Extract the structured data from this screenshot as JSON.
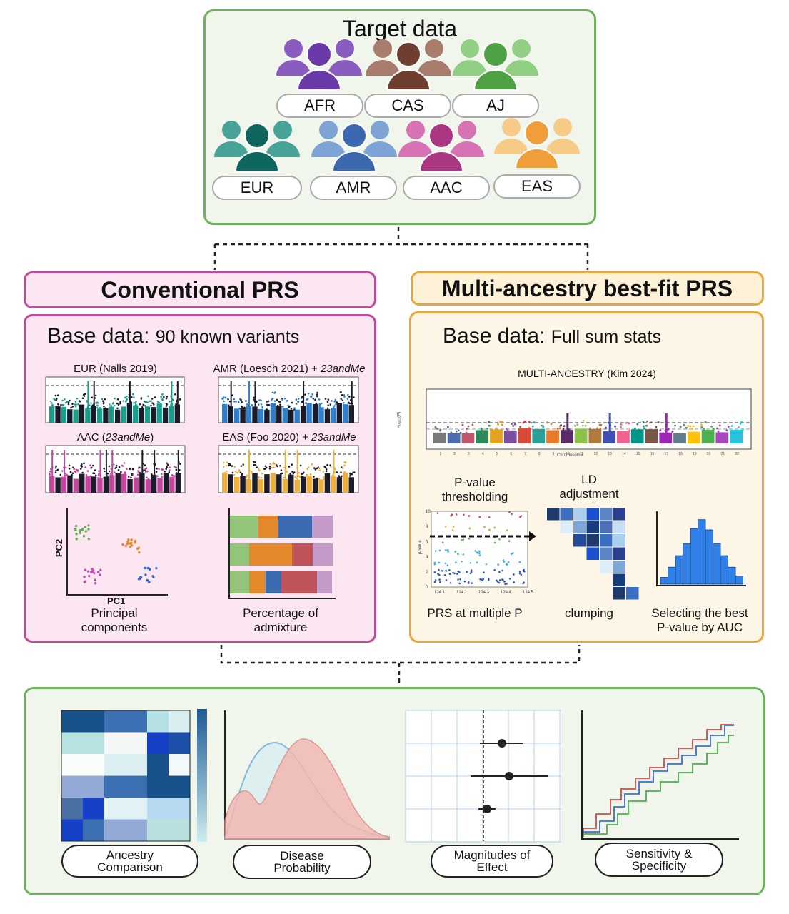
{
  "target": {
    "title": "Target data",
    "groups": [
      {
        "label": "AFR",
        "color": "#8a5cc0",
        "dark": "#6a3ba8"
      },
      {
        "label": "CAS",
        "color": "#a87c6c",
        "dark": "#6e3e2e"
      },
      {
        "label": "AJ",
        "color": "#90cf84",
        "dark": "#4fa244"
      },
      {
        "label": "EUR",
        "color": "#47a298",
        "dark": "#0f665c"
      },
      {
        "label": "AMR",
        "color": "#7ea4d6",
        "dark": "#3c68b0"
      },
      {
        "label": "AAC",
        "color": "#d772b4",
        "dark": "#ab3682"
      },
      {
        "label": "EAS",
        "color": "#f6cb88",
        "dark": "#ef9e3a"
      }
    ]
  },
  "conventional": {
    "header": "Conventional PRS",
    "base_bold": "Base data:",
    "base_rest": "90 known variants",
    "plots": [
      {
        "title": "EUR (Nalls 2019)",
        "colors": [
          "#16a08c",
          "#1b1b2b"
        ]
      },
      {
        "title_plain": "AMR (Loesch 2021) + ",
        "title_italic": "23andMe",
        "colors": [
          "#2d7fd0",
          "#1b1b2b"
        ]
      },
      {
        "title_plain": "AAC (",
        "title_italic": "23andMe",
        "title_tail": ")",
        "colors": [
          "#c8449e",
          "#1b1b2b"
        ]
      },
      {
        "title_plain": "EAS (Foo 2020) + ",
        "title_italic": "23andMe",
        "colors": [
          "#f0ae3a",
          "#1b1b2b"
        ]
      }
    ],
    "pca": {
      "xlabel": "PC1",
      "ylabel": "PC2",
      "caption": "Principal\ncomponents"
    },
    "admixture": {
      "caption": "Percentage of\nadmixture"
    }
  },
  "multi": {
    "header": "Multi-ancestry best-fit PRS",
    "base_bold": "Base data:",
    "base_rest": "Full sum stats",
    "manhattan_title": "MULTI-ANCESTRY (Kim 2024)",
    "manhattan_xlabel": "Chromosome",
    "manhattan_ylabel": "-log₁₀(P)",
    "step1_title": "P-value\nthresholding",
    "step2_title": "LD\nadjustment",
    "step1_caption": "PRS at multiple P",
    "step2_caption": "clumping",
    "step3_caption": "Selecting the best\nP-value by AUC",
    "pval_ylabel": "p-value",
    "pval_xticks": [
      "124.1",
      "124.2",
      "124.3",
      "124.4",
      "124.5"
    ],
    "pval_yticks": [
      "0",
      "2",
      "4",
      "6",
      "8",
      "10"
    ]
  },
  "outputs": [
    {
      "label": "Ancestry\nComparison"
    },
    {
      "label": "Disease\nProbability"
    },
    {
      "label": "Magnitudes of\nEffect"
    },
    {
      "label": "Sensitivity &\nSpecificity"
    }
  ]
}
